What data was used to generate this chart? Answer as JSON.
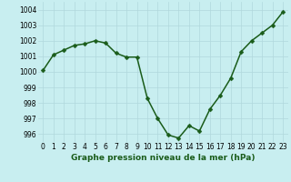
{
  "x": [
    0,
    1,
    2,
    3,
    4,
    5,
    6,
    7,
    8,
    9,
    10,
    11,
    12,
    13,
    14,
    15,
    16,
    17,
    18,
    19,
    20,
    21,
    22,
    23
  ],
  "y": [
    1000.1,
    1001.1,
    1001.4,
    1001.7,
    1001.8,
    1002.0,
    1001.85,
    1001.2,
    1000.95,
    1000.95,
    998.3,
    997.0,
    995.95,
    995.75,
    996.55,
    996.2,
    997.6,
    998.5,
    999.6,
    1001.3,
    1002.0,
    1002.5,
    1003.0,
    1003.85
  ],
  "line_color": "#1a5c1a",
  "marker_color": "#1a5c1a",
  "bg_color": "#c8eef0",
  "grid_color": "#b0d8dc",
  "xlabel": "Graphe pression niveau de la mer (hPa)",
  "ylim": [
    995.5,
    1004.5
  ],
  "xlim": [
    -0.5,
    23.5
  ],
  "yticks": [
    996,
    997,
    998,
    999,
    1000,
    1001,
    1002,
    1003,
    1004
  ],
  "xticks": [
    0,
    1,
    2,
    3,
    4,
    5,
    6,
    7,
    8,
    9,
    10,
    11,
    12,
    13,
    14,
    15,
    16,
    17,
    18,
    19,
    20,
    21,
    22,
    23
  ],
  "xtick_labels": [
    "0",
    "1",
    "2",
    "3",
    "4",
    "5",
    "6",
    "7",
    "8",
    "9",
    "10",
    "11",
    "12",
    "13",
    "14",
    "15",
    "16",
    "17",
    "18",
    "19",
    "20",
    "21",
    "22",
    "23"
  ],
  "xlabel_fontsize": 6.5,
  "tick_fontsize": 5.5,
  "linewidth": 1.1,
  "markersize": 2.5
}
